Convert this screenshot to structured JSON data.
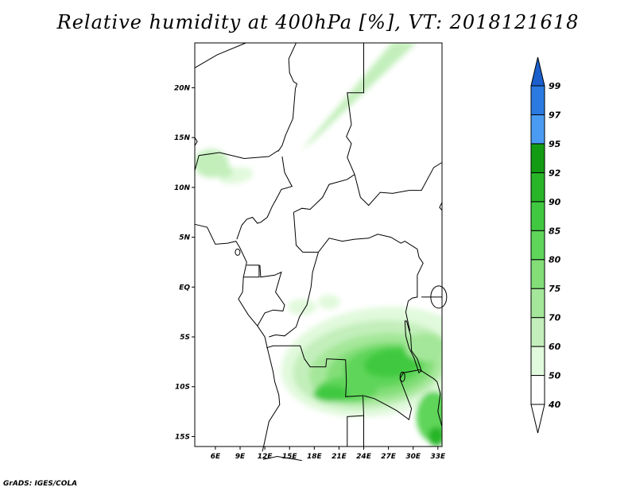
{
  "title": "Relative humidity at 400hPa [%], VT: 2018121618",
  "credit": "GrADS: IGES/COLA",
  "map": {
    "lon_range": [
      3.5,
      33.5
    ],
    "lat_range": [
      -16,
      24.5
    ],
    "lat_ticks": [
      {
        "value": 20,
        "label": "20N"
      },
      {
        "value": 15,
        "label": "15N"
      },
      {
        "value": 10,
        "label": "10N"
      },
      {
        "value": 5,
        "label": "5N"
      },
      {
        "value": 0,
        "label": "EQ"
      },
      {
        "value": -5,
        "label": "5S"
      },
      {
        "value": -10,
        "label": "10S"
      },
      {
        "value": -15,
        "label": "15S"
      }
    ],
    "lon_ticks": [
      {
        "value": 6,
        "label": "6E"
      },
      {
        "value": 9,
        "label": "9E"
      },
      {
        "value": 12,
        "label": "12E"
      },
      {
        "value": 15,
        "label": "15E"
      },
      {
        "value": 18,
        "label": "18E"
      },
      {
        "value": 21,
        "label": "21E"
      },
      {
        "value": 24,
        "label": "24E"
      },
      {
        "value": 27,
        "label": "27E"
      },
      {
        "value": 30,
        "label": "30E"
      },
      {
        "value": 33,
        "label": "33E"
      }
    ]
  },
  "colorbar": {
    "levels": [
      "40",
      "50",
      "60",
      "70",
      "75",
      "80",
      "85",
      "90",
      "92",
      "95",
      "97",
      "99"
    ],
    "colors": [
      "#ffffff",
      "#e1f9dc",
      "#c3efbb",
      "#a5e79a",
      "#83de78",
      "#5fd55a",
      "#40c940",
      "#28b528",
      "#139c13",
      "#4a9cf2",
      "#2a7ae2",
      "#1a5fcc"
    ]
  }
}
